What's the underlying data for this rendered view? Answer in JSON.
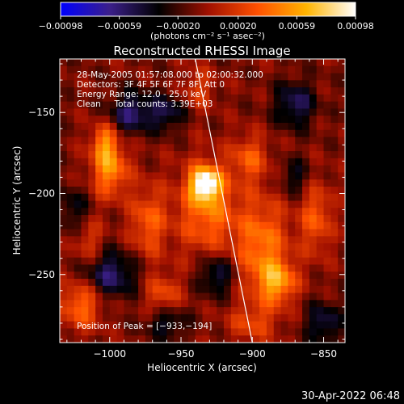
{
  "chart_data": {
    "type": "heatmap",
    "title": "Reconstructed RHESSI Image",
    "xlabel": "Heliocentric X (arcsec)",
    "ylabel": "Heliocentric Y (arcsec)",
    "xlim": [
      -1035,
      -835
    ],
    "ylim": [
      -292,
      -117
    ],
    "x_ticks": [
      -1000,
      -950,
      -900,
      -850
    ],
    "x_tick_labels": [
      "−1000",
      "−950",
      "−900",
      "−850"
    ],
    "y_ticks": [
      -150,
      -200,
      -250
    ],
    "y_tick_labels": [
      "−150",
      "−200",
      "−250"
    ],
    "colorbar": {
      "min": -0.00098,
      "max": 0.00098,
      "ticks": [
        -0.00098,
        -0.00059,
        -0.0002,
        0.0002,
        0.00059,
        0.00098
      ],
      "tick_labels": [
        "−0.00098",
        "−0.00059",
        "−0.00020",
        "0.00020",
        "0.00059",
        "0.00098"
      ],
      "unit_label": "(photons cm⁻² s⁻¹ asec⁻²)",
      "colormap": [
        "#0000ff",
        "#3b1f8a",
        "#000000",
        "#a01000",
        "#ff5000",
        "#ffb400",
        "#ffffff"
      ]
    },
    "annotation_lines": [
      "28-May-2005 01:57:08.000 to 02:00:32.000",
      "Detectors: 3F 4F 5F 6F 7F 8F, Att 0",
      "Energy Range: 12.0 - 25.0 keV",
      "Clean     Total counts: 3.39E+03"
    ],
    "peak_label": "Position of Peak = [−933,−194]",
    "peak": {
      "x": -933,
      "y": -194,
      "value": 0.00098
    },
    "limb_line": [
      [
        -940,
        -117
      ],
      [
        -900,
        -292
      ]
    ],
    "sources": [
      {
        "x": -933,
        "y": -194,
        "value": 0.00098,
        "sx": 7,
        "sy": 7
      },
      {
        "x": -932,
        "y": -210,
        "value": 0.0005,
        "sx": 15,
        "sy": 20
      },
      {
        "x": -1000,
        "y": -185,
        "value": 0.0006,
        "sx": 9,
        "sy": 12
      },
      {
        "x": -1004,
        "y": -168,
        "value": 0.00045,
        "sx": 6,
        "sy": 8
      },
      {
        "x": -973,
        "y": -218,
        "value": 0.00042,
        "sx": 9,
        "sy": 16
      },
      {
        "x": -893,
        "y": -233,
        "value": 0.00052,
        "sx": 13,
        "sy": 22
      },
      {
        "x": -882,
        "y": -255,
        "value": 0.00055,
        "sx": 9,
        "sy": 9
      },
      {
        "x": -902,
        "y": -178,
        "value": 0.00038,
        "sx": 9,
        "sy": 10
      },
      {
        "x": -855,
        "y": -215,
        "value": 0.0004,
        "sx": 8,
        "sy": 16
      },
      {
        "x": -1020,
        "y": -268,
        "value": 0.0005,
        "sx": 10,
        "sy": 11
      },
      {
        "x": -963,
        "y": -262,
        "value": 0.00035,
        "sx": 9,
        "sy": 9
      },
      {
        "x": -938,
        "y": -135,
        "value": 0.00028,
        "sx": 8,
        "sy": 9
      },
      {
        "x": -1015,
        "y": -230,
        "value": 0.0003,
        "sx": 7,
        "sy": 10
      },
      {
        "x": -900,
        "y": -280,
        "value": 0.0003,
        "sx": 12,
        "sy": 8
      },
      {
        "x": -985,
        "y": -150,
        "value": -0.0005,
        "sx": 10,
        "sy": 9
      },
      {
        "x": -960,
        "y": -150,
        "value": -0.0004,
        "sx": 9,
        "sy": 8
      },
      {
        "x": -870,
        "y": -145,
        "value": -0.00045,
        "sx": 10,
        "sy": 10
      },
      {
        "x": -1000,
        "y": -250,
        "value": -0.0005,
        "sx": 14,
        "sy": 10
      },
      {
        "x": -925,
        "y": -250,
        "value": -0.00045,
        "sx": 9,
        "sy": 9
      },
      {
        "x": -850,
        "y": -280,
        "value": -0.0004,
        "sx": 9,
        "sy": 9
      },
      {
        "x": -1025,
        "y": -210,
        "value": -0.0003,
        "sx": 7,
        "sy": 10
      },
      {
        "x": -960,
        "y": -280,
        "value": -0.00035,
        "sx": 10,
        "sy": 7
      },
      {
        "x": -870,
        "y": -190,
        "value": -0.0003,
        "sx": 8,
        "sy": 8
      }
    ],
    "background_level": -8e-05
  },
  "footer_timestamp": "30-Apr-2022 06:48"
}
